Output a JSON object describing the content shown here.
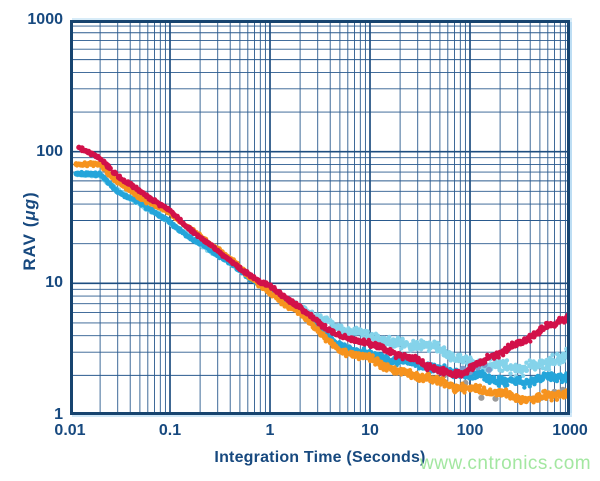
{
  "page": {
    "watermark": "www.cntronics.com",
    "watermark_color": "#A3E7A1",
    "background": "#ffffff"
  },
  "colors": {
    "grid_major": "#1E4E80",
    "grid_minor": "#2A5A8E",
    "frame": "#17446F",
    "label_text": "#17497F"
  },
  "chart_data": {
    "type": "scatter",
    "title": "",
    "x_axis": {
      "label": "Integration Time (Seconds)",
      "scale": "log",
      "min": 0.01,
      "max": 1000,
      "ticks": [
        "0.01",
        "0.1",
        "1",
        "10",
        "100",
        "1000"
      ]
    },
    "y_axis": {
      "label": "RAV (μg)",
      "label_parts": {
        "prefix": "RAV (",
        "mu": "μg",
        "suffix": ")"
      },
      "scale": "log",
      "min": 1,
      "max": 1000,
      "ticks": [
        "1000",
        "100",
        "10",
        "1"
      ]
    },
    "grid": {
      "minor_lines": true,
      "legend": "none"
    },
    "series": [
      {
        "name": "device-light-blue",
        "color": "#85D3EA",
        "t": [
          0.0115,
          0.02,
          0.03,
          0.05,
          0.1,
          0.3,
          1,
          2,
          5,
          10,
          20,
          40,
          100,
          200,
          400,
          700,
          1000
        ],
        "v": [
          70,
          66,
          50,
          40,
          28.5,
          16.8,
          8.7,
          6.2,
          4.75,
          4.05,
          3.5,
          3.05,
          2.55,
          2.42,
          2.42,
          2.5,
          2.6
        ],
        "spread": [
          0.015,
          0.015,
          0.015,
          0.015,
          0.015,
          0.016,
          0.02,
          0.028,
          0.033,
          0.038,
          0.04,
          0.043,
          0.048,
          0.05,
          0.05,
          0.05,
          0.05
        ]
      },
      {
        "name": "device-blue",
        "color": "#24A5DA",
        "t": [
          0.0115,
          0.02,
          0.03,
          0.05,
          0.1,
          0.3,
          1,
          2,
          5,
          10,
          20,
          40,
          100,
          200,
          400,
          700,
          1000
        ],
        "v": [
          70,
          66,
          50,
          40,
          28.5,
          16.8,
          8.7,
          6.0,
          3.4,
          3.0,
          2.55,
          2.2,
          2.0,
          1.9,
          1.85,
          1.9,
          1.9
        ],
        "spread": [
          0.015,
          0.015,
          0.015,
          0.015,
          0.015,
          0.016,
          0.018,
          0.022,
          0.027,
          0.03,
          0.032,
          0.033,
          0.034,
          0.035,
          0.035,
          0.035,
          0.035
        ]
      },
      {
        "name": "device-orange",
        "color": "#F6931E",
        "t": [
          0.0115,
          0.02,
          0.028,
          0.05,
          0.1,
          0.3,
          1,
          2,
          5,
          10,
          20,
          40,
          70,
          130,
          300,
          600,
          1000
        ],
        "v": [
          83,
          80,
          62,
          45,
          33,
          18.5,
          8.5,
          5.7,
          3.05,
          2.7,
          2.25,
          1.85,
          1.62,
          1.47,
          1.42,
          1.42,
          1.47
        ],
        "spread": [
          0.015,
          0.015,
          0.015,
          0.015,
          0.015,
          0.016,
          0.018,
          0.022,
          0.025,
          0.028,
          0.03,
          0.032,
          0.034,
          0.035,
          0.035,
          0.035,
          0.035
        ]
      },
      {
        "name": "device-red",
        "color": "#D2114A",
        "t": [
          0.0125,
          0.02,
          0.03,
          0.05,
          0.1,
          0.3,
          0.5,
          1,
          2,
          5,
          10,
          20,
          40,
          70,
          100,
          200,
          400,
          700,
          1000
        ],
        "v": [
          108,
          85,
          65,
          50,
          35.5,
          17.6,
          12.6,
          9.3,
          6.5,
          4.05,
          3.45,
          2.8,
          2.25,
          2.1,
          2.35,
          3.0,
          3.85,
          4.7,
          5.7
        ],
        "spread": [
          0.016,
          0.016,
          0.015,
          0.015,
          0.015,
          0.015,
          0.016,
          0.017,
          0.019,
          0.021,
          0.024,
          0.026,
          0.028,
          0.028,
          0.028,
          0.028,
          0.028,
          0.028,
          0.028
        ]
      }
    ],
    "stray_points": [
      {
        "name": "stray-gray",
        "color": "#9A9A9A",
        "points": [
          [
            40,
            1.9
          ],
          [
            55,
            2.0
          ],
          [
            90,
            1.75
          ],
          [
            130,
            1.35
          ],
          [
            180,
            1.33
          ],
          [
            260,
            1.38
          ],
          [
            420,
            1.33
          ],
          [
            520,
            1.35
          ],
          [
            700,
            1.5
          ],
          [
            850,
            1.55
          ]
        ]
      },
      {
        "name": "stray-steel-blue",
        "color": "#7B9CCB",
        "points": [
          [
            85,
            2.25
          ],
          [
            100,
            2.12
          ],
          [
            120,
            2.3
          ],
          [
            140,
            2.4
          ],
          [
            155,
            2.2
          ]
        ]
      }
    ]
  }
}
